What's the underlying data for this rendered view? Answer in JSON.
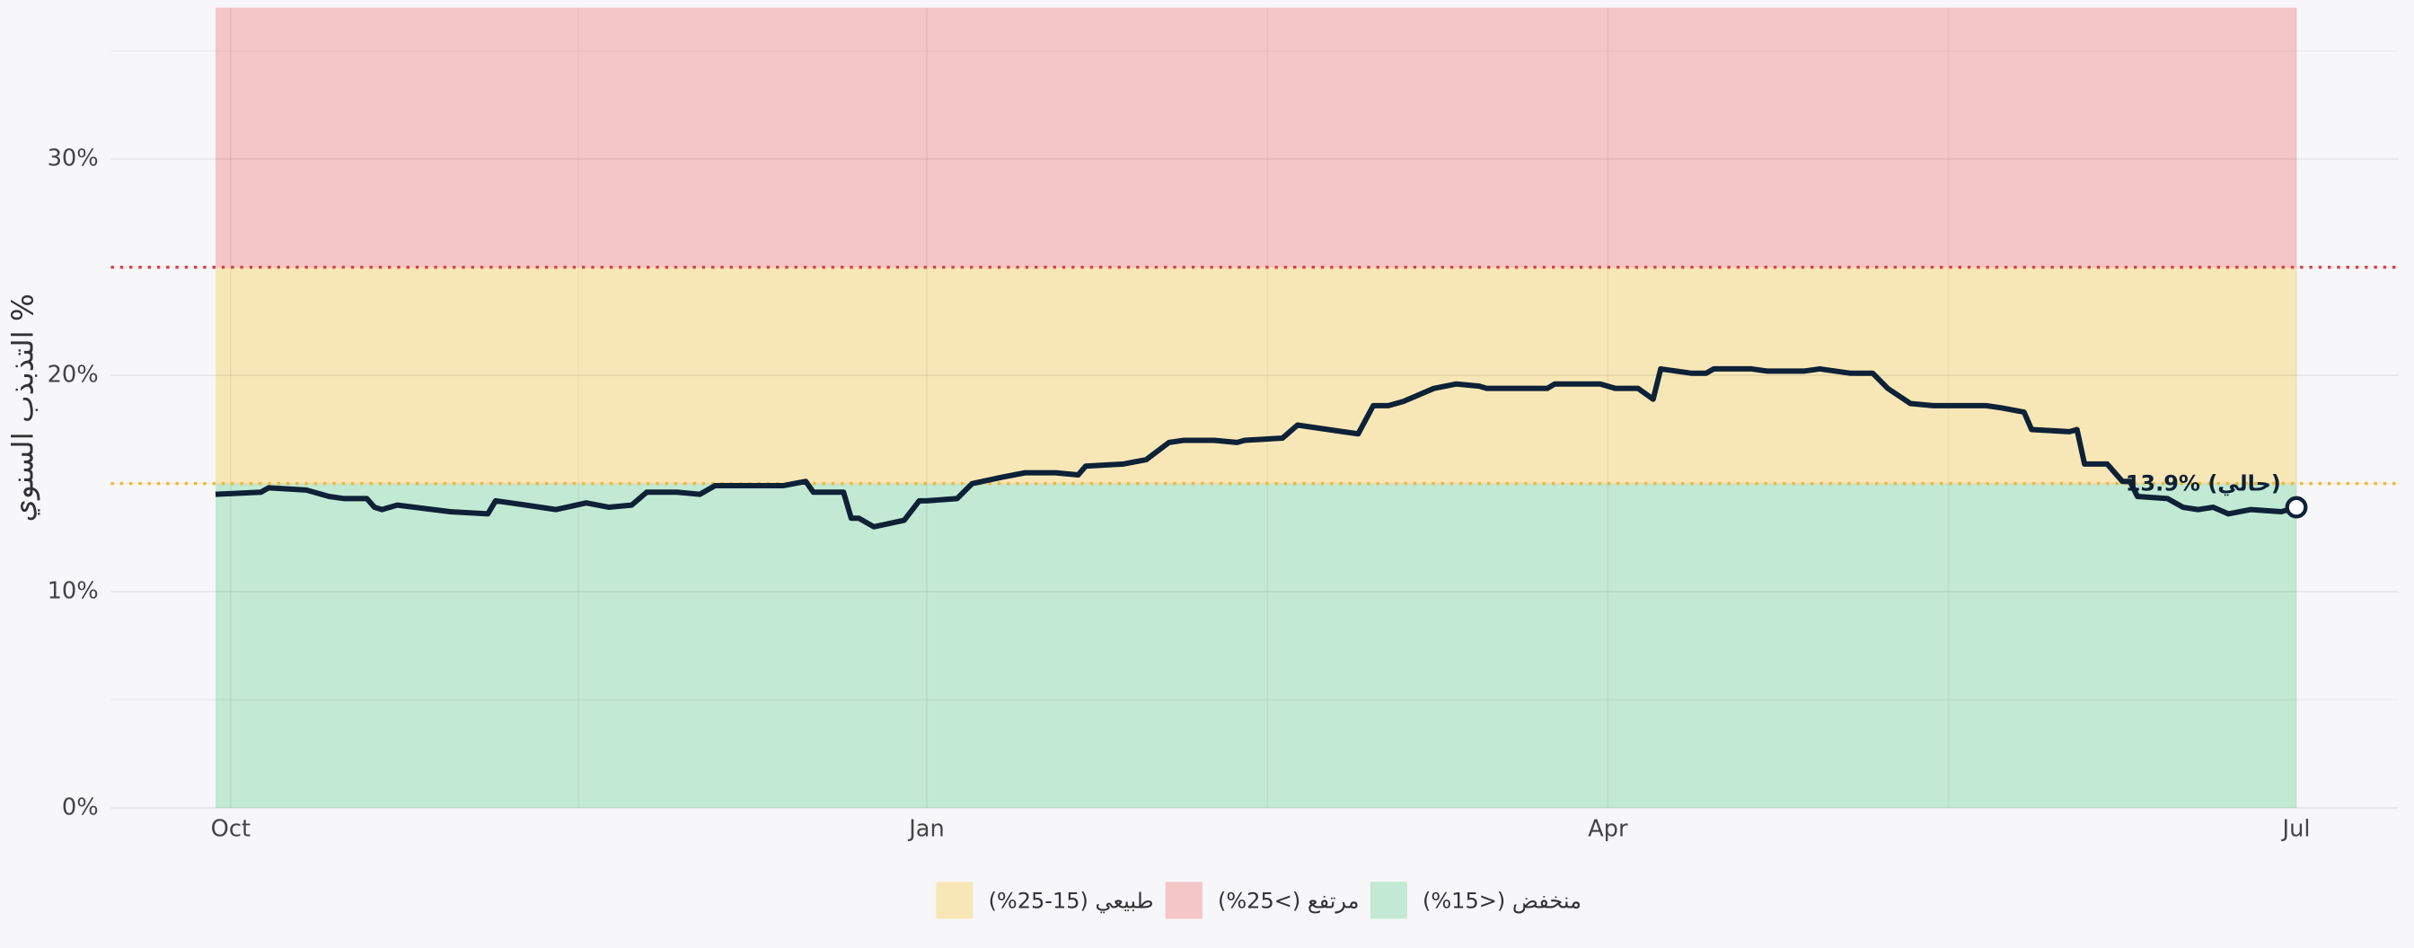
{
  "chart_data": {
    "type": "line",
    "y_label": "التذبذب السنوي %",
    "xlim": [
      0,
      275
    ],
    "xticks": [
      {
        "value": 2,
        "label": "Oct"
      },
      {
        "value": 94,
        "label": "Jan"
      },
      {
        "value": 184,
        "label": "Apr"
      },
      {
        "value": 275,
        "label": "Jul"
      }
    ],
    "minor_xticks": [
      48,
      139,
      229
    ],
    "ylim": [
      0,
      37
    ],
    "yticks": [
      {
        "value": 0,
        "label": "0%"
      },
      {
        "value": 10,
        "label": "10%"
      },
      {
        "value": 20,
        "label": "20%"
      },
      {
        "value": 30,
        "label": "30%"
      }
    ],
    "minor_yticks": [
      5,
      15,
      25,
      35
    ],
    "grid": true,
    "zones": [
      {
        "name": "طبيعي (15-25%)",
        "color": "#f8e7b6",
        "from": 15,
        "to": 25,
        "line_color": "#f5b82e"
      },
      {
        "name": "مرتفع (>25%)",
        "color": "#f4c6c8",
        "from": 25,
        "to": 37,
        "line_color": "#e0404a"
      },
      {
        "name": "منخفض (<15%)",
        "color": "#c2e9d3",
        "from": 0,
        "to": 15
      }
    ],
    "annotation": "13.9% (حالي)",
    "series": [
      {
        "color": "#0d2137",
        "x": [
          0,
          6,
          7,
          12,
          15,
          17,
          20,
          21,
          22,
          24,
          31,
          36,
          37,
          41,
          45,
          49,
          52,
          55,
          57,
          61,
          64,
          66,
          71,
          75,
          78,
          79,
          83,
          84,
          85,
          87,
          91,
          93,
          94,
          98,
          100,
          104,
          107,
          111,
          114,
          115,
          120,
          123,
          126,
          128,
          132,
          135,
          136,
          141,
          143,
          149,
          151,
          153,
          155,
          157,
          161,
          164,
          167,
          168,
          176,
          177,
          183,
          185,
          188,
          190,
          191,
          195,
          197,
          198,
          203,
          205,
          210,
          212,
          216,
          219,
          221,
          224,
          227,
          231,
          234,
          236,
          239,
          240,
          245,
          246,
          247,
          250,
          252,
          253,
          254,
          258,
          260,
          262,
          264,
          266,
          269,
          273,
          275
        ],
        "values": [
          14.5,
          14.6,
          14.8,
          14.7,
          14.4,
          14.3,
          14.3,
          13.9,
          13.8,
          14.0,
          13.7,
          13.6,
          14.2,
          14.0,
          13.8,
          14.1,
          13.9,
          14.0,
          14.6,
          14.6,
          14.5,
          14.9,
          14.9,
          14.9,
          15.1,
          14.6,
          14.6,
          13.4,
          13.4,
          13.0,
          13.3,
          14.2,
          14.2,
          14.3,
          15.0,
          15.3,
          15.5,
          15.5,
          15.4,
          15.8,
          15.9,
          16.1,
          16.9,
          17.0,
          17.0,
          16.9,
          17.0,
          17.1,
          17.7,
          17.4,
          17.3,
          18.6,
          18.6,
          18.8,
          19.4,
          19.6,
          19.5,
          19.4,
          19.4,
          19.6,
          19.6,
          19.4,
          19.4,
          18.9,
          20.3,
          20.1,
          20.1,
          20.3,
          20.3,
          20.2,
          20.2,
          20.3,
          20.1,
          20.1,
          19.4,
          18.7,
          18.6,
          18.6,
          18.6,
          18.5,
          18.3,
          17.5,
          17.4,
          17.5,
          15.9,
          15.9,
          15.1,
          15.1,
          14.4,
          14.3,
          13.9,
          13.8,
          13.9,
          13.6,
          13.8,
          13.7,
          13.9
        ]
      }
    ]
  }
}
